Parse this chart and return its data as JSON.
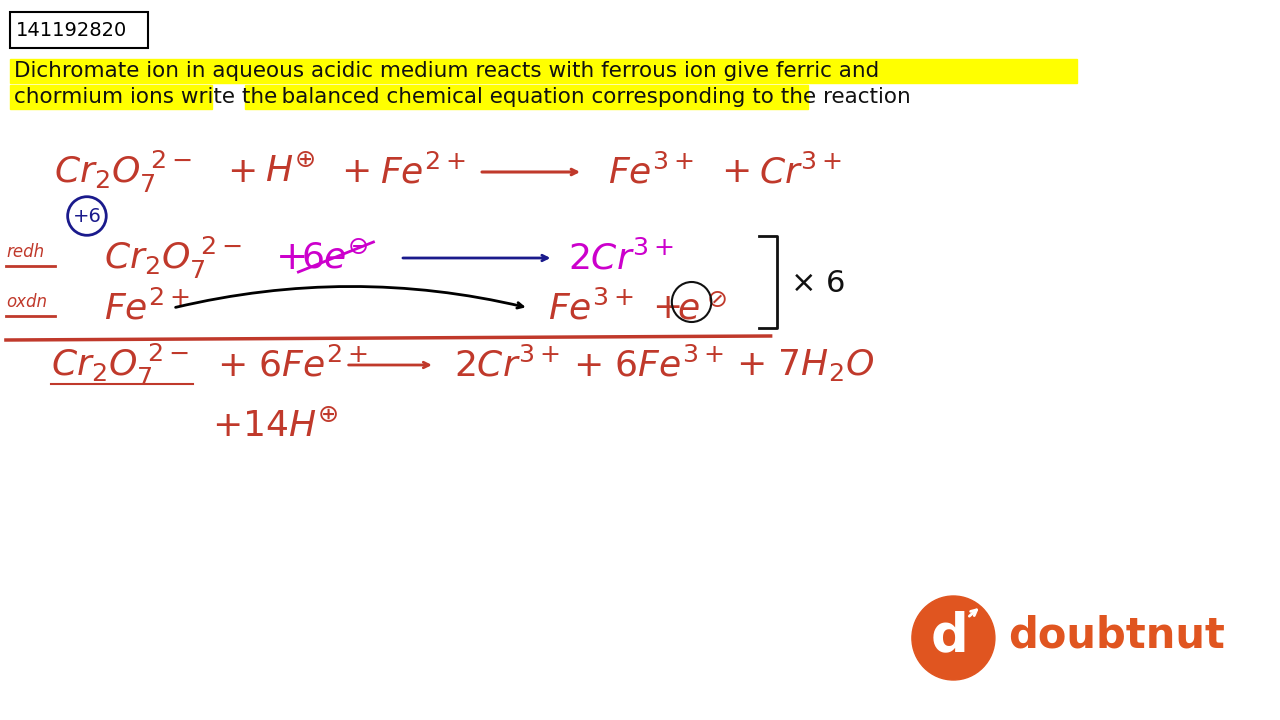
{
  "bg_color": "#ffffff",
  "id_box": "141192820",
  "red": "#c0392b",
  "dark_red": "#aa2222",
  "blue": "#1a1a8c",
  "magenta": "#cc00cc",
  "black": "#111111",
  "yellow_hl": "#ffff00",
  "doubtnut_orange": "#e05520",
  "q_line1": "Dichromate ion in aqueous acidic medium reacts with ferrous ion give ferric and",
  "q_line2": "chormium ions write the balanced chemical equation corresponding to the reaction"
}
